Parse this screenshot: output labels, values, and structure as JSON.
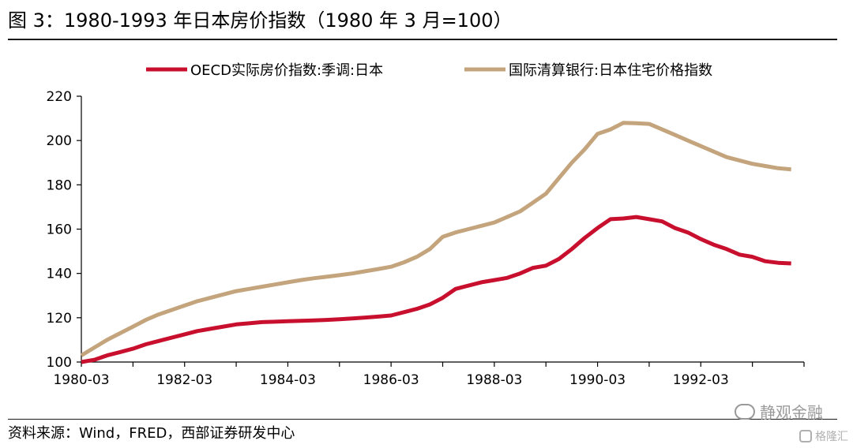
{
  "page": {
    "title": "图 3：1980-1993 年日本房价指数（1980 年 3 月=100）",
    "source": "资料来源：Wind，FRED，西部证券研发中心",
    "watermark": "静观金融",
    "badge": "格隆汇"
  },
  "chart_data": {
    "type": "line",
    "title": "图 3：1980-1993 年日本房价指数（1980 年 3 月=100）",
    "xlabel": "",
    "ylabel": "",
    "ylim": [
      100,
      220
    ],
    "yticks": [
      100,
      120,
      140,
      160,
      180,
      200,
      220
    ],
    "xlim": [
      1980.0,
      1994.0
    ],
    "xticks": [
      {
        "value": 1980.0,
        "label": "1980-03"
      },
      {
        "value": 1982.0,
        "label": "1982-03"
      },
      {
        "value": 1984.0,
        "label": "1984-03"
      },
      {
        "value": 1986.0,
        "label": "1986-03"
      },
      {
        "value": 1988.0,
        "label": "1988-03"
      },
      {
        "value": 1990.0,
        "label": "1990-03"
      },
      {
        "value": 1992.0,
        "label": "1992-03"
      }
    ],
    "grid": false,
    "legend_position": "top",
    "series": [
      {
        "name": "OECD实际房价指数:季调:日本",
        "color": "#c8102e",
        "x": [
          1980.0,
          1980.25,
          1980.5,
          1980.75,
          1981.0,
          1981.25,
          1981.5,
          1981.75,
          1982.0,
          1982.25,
          1982.5,
          1982.75,
          1983.0,
          1983.25,
          1983.5,
          1983.75,
          1984.0,
          1984.25,
          1984.5,
          1984.75,
          1985.0,
          1985.25,
          1985.5,
          1985.75,
          1986.0,
          1986.25,
          1986.5,
          1986.75,
          1987.0,
          1987.25,
          1987.5,
          1987.75,
          1988.0,
          1988.25,
          1988.5,
          1988.75,
          1989.0,
          1989.25,
          1989.5,
          1989.75,
          1990.0,
          1990.25,
          1990.5,
          1990.75,
          1991.0,
          1991.25,
          1991.5,
          1991.75,
          1992.0,
          1992.25,
          1992.5,
          1992.75,
          1993.0,
          1993.25,
          1993.5,
          1993.75
        ],
        "values": [
          100,
          101,
          103,
          104.5,
          106,
          108,
          109.5,
          111,
          112.5,
          114,
          115,
          116,
          117,
          117.5,
          118,
          118.2,
          118.4,
          118.6,
          118.8,
          119,
          119.3,
          119.7,
          120.1,
          120.5,
          121,
          122.5,
          124,
          126,
          129,
          133,
          134.5,
          136,
          137,
          138,
          140,
          142.5,
          143.5,
          146.5,
          151,
          156,
          160.5,
          164.5,
          164.8,
          165.5,
          164.5,
          163.5,
          160.5,
          158.5,
          155.5,
          153,
          151,
          148.5,
          147.5,
          145.5,
          144.8,
          144.5
        ]
      },
      {
        "name": "国际清算银行:日本住宅价格指数",
        "color": "#c4a47c",
        "x": [
          1980.0,
          1980.25,
          1980.5,
          1980.75,
          1981.0,
          1981.25,
          1981.5,
          1981.75,
          1982.0,
          1982.25,
          1982.5,
          1982.75,
          1983.0,
          1983.25,
          1983.5,
          1983.75,
          1984.0,
          1984.25,
          1984.5,
          1984.75,
          1985.0,
          1985.25,
          1985.5,
          1985.75,
          1986.0,
          1986.25,
          1986.5,
          1986.75,
          1987.0,
          1987.25,
          1987.5,
          1987.75,
          1988.0,
          1988.25,
          1988.5,
          1988.75,
          1989.0,
          1989.25,
          1989.5,
          1989.75,
          1990.0,
          1990.25,
          1990.5,
          1990.75,
          1991.0,
          1991.25,
          1991.5,
          1991.75,
          1992.0,
          1992.25,
          1992.5,
          1992.75,
          1993.0,
          1993.25,
          1993.5,
          1993.75
        ],
        "values": [
          103,
          106.5,
          110,
          113,
          116,
          119,
          121.5,
          123.5,
          125.5,
          127.5,
          129,
          130.5,
          132,
          133,
          134,
          135,
          136,
          137,
          137.8,
          138.5,
          139.2,
          140,
          141,
          142,
          143,
          145,
          147.5,
          151,
          156.5,
          158.5,
          160,
          161.5,
          163,
          165.5,
          168,
          172,
          176,
          183,
          190,
          196,
          203,
          205,
          208,
          207.8,
          207.5,
          205,
          202.5,
          200,
          197.5,
          195,
          192.5,
          191,
          189.5,
          188.5,
          187.5,
          187
        ]
      }
    ]
  }
}
